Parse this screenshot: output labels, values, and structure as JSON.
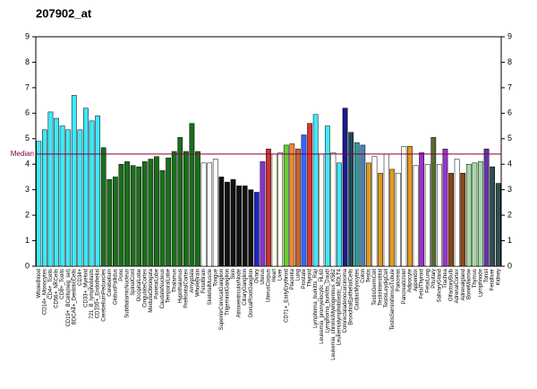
{
  "chart_data": {
    "type": "bar",
    "title": "207902_at",
    "categories": [
      "WholeBlood",
      "CD14+_Monocytes",
      "CD4+_Tcells",
      "CD56+_NKCells",
      "CD8+_Tcells",
      "CD19+_BCells(neg_sel)",
      "BDCA4+_DentriticCells",
      "CD34+",
      "CD33+_Myeloid",
      "721_B_lymphoblasts",
      "CD105+_Endothelial",
      "CerebellumPeduncles",
      "Cerebellum",
      "GlobusPallidus",
      "Pons",
      "SubthalamicNucleus",
      "SpinalCord",
      "OccipitalLobe",
      "CingulateCortex",
      "MedullaOblongata",
      "ParietalLobe",
      "CaudateNucleus",
      "TemporalLobe",
      "Thalamus",
      "Hypothalamus",
      "PrefrontalCortex",
      "Amygdala",
      "WholeBrain",
      "FetalBrain",
      "SkeletalMuscle",
      "Tongue",
      "SuperiorCervicalGanglion",
      "TrigeminalGanglion",
      "Skin",
      "AtrioventricularNode",
      "CiliaryGanglion",
      "DorsalRootGanglion",
      "Ovary",
      "Uterus",
      "UterusCorpus",
      "Heart",
      "Liver",
      "CD71+_EarlyErythroid",
      "Placenta",
      "Lung",
      "Prostate",
      "Thyroid",
      "Lymphoma_burkitts_Raji",
      "Leukemia_promyelocytic_HL60",
      "Lymphoma_burkitts_Daudi",
      "Leukemia_chronicMyelogenous_K562",
      "Leukemialymphoblastic_MOLT4",
      "Colorectaladenocarcinoma",
      "BronchialEpithelialCells",
      "CardiacMyocytes",
      "Colon",
      "Testis",
      "TestisGermCell",
      "TestisInterstitial",
      "TestisLeydigCell",
      "TestisSeminiferousTubule",
      "Pancreas",
      "PancreaticIslet",
      "Adipocyte",
      "Appendix",
      "FetalThyroid",
      "FetalLung",
      "Pituitary",
      "SalivaryGland",
      "Trachea",
      "OlfactoryBulb",
      "AdrenalCortex",
      "Adrenalgland",
      "BoneMarrow",
      "Thymus",
      "Lymphnode",
      "Tonsil",
      "Fetalliver",
      "Kidney"
    ],
    "values": [
      4.9,
      5.35,
      6.05,
      5.8,
      5.5,
      5.35,
      6.7,
      5.35,
      6.2,
      5.7,
      5.9,
      4.65,
      3.4,
      3.5,
      4.0,
      4.1,
      3.95,
      3.9,
      4.1,
      4.2,
      4.3,
      3.75,
      4.25,
      4.5,
      5.05,
      4.5,
      5.6,
      4.5,
      4.05,
      4.05,
      4.2,
      3.5,
      3.3,
      3.4,
      3.15,
      3.15,
      3.0,
      2.9,
      4.1,
      4.6,
      4.4,
      4.45,
      4.75,
      4.8,
      4.6,
      5.15,
      5.6,
      5.95,
      4.4,
      5.5,
      4.45,
      4.05,
      6.2,
      5.25,
      4.85,
      4.75,
      4.05,
      4.3,
      3.65,
      4.4,
      3.8,
      3.65,
      4.7,
      4.7,
      3.95,
      4.45,
      4.0,
      5.05,
      4.0,
      4.6,
      3.65,
      4.2,
      3.65,
      4.0,
      4.05,
      4.1,
      4.6,
      3.9,
      3.25
    ],
    "colors": [
      "#40e8f8",
      "#40e8f8",
      "#40e8f8",
      "#40e8f8",
      "#40e8f8",
      "#40e8f8",
      "#40e8f8",
      "#40e8f8",
      "#40e8f8",
      "#40e8f8",
      "#40e8f8",
      "#1a6e1a",
      "#1a6e1a",
      "#1a6e1a",
      "#1a6e1a",
      "#1a6e1a",
      "#1a6e1a",
      "#1a6e1a",
      "#1a6e1a",
      "#1a6e1a",
      "#1a6e1a",
      "#1a6e1a",
      "#1a6e1a",
      "#1a6e1a",
      "#1a6e1a",
      "#1a6e1a",
      "#1a6e1a",
      "#1a6e1a",
      "#ffffff",
      "#ffffff",
      "#ffffff",
      "#111111",
      "#111111",
      "#111111",
      "#111111",
      "#111111",
      "#111111",
      "#2222cc",
      "#8833cc",
      "#cc3333",
      "#ffffee",
      "#ffffee",
      "#66cc33",
      "#ee8833",
      "#cc6633",
      "#3366ff",
      "#dd3333",
      "#40e8f8",
      "#ffffff",
      "#40e8f8",
      "#ffffff",
      "#40e8f8",
      "#1a1a8c",
      "#1a4a5a",
      "#2a9a9a",
      "#4682b4",
      "#e09a20",
      "#ffffff",
      "#e09a20",
      "#ffffff",
      "#e09a20",
      "#ffffff",
      "#ffffff",
      "#e09a20",
      "#ffffff",
      "#9933cc",
      "#ffffff",
      "#556b2f",
      "#ffffff",
      "#9933cc",
      "#8b4513",
      "#ffffff",
      "#8b4513",
      "#a8d8a8",
      "#a8d8a8",
      "#a8d8a8",
      "#6633aa",
      "#2f4f4f",
      "#2f4f4f"
    ],
    "median": 4.4,
    "median_label": "Median",
    "ylim": [
      0,
      9
    ],
    "yticks": [
      0,
      1,
      2,
      3,
      4,
      5,
      6,
      7,
      8,
      9
    ]
  }
}
